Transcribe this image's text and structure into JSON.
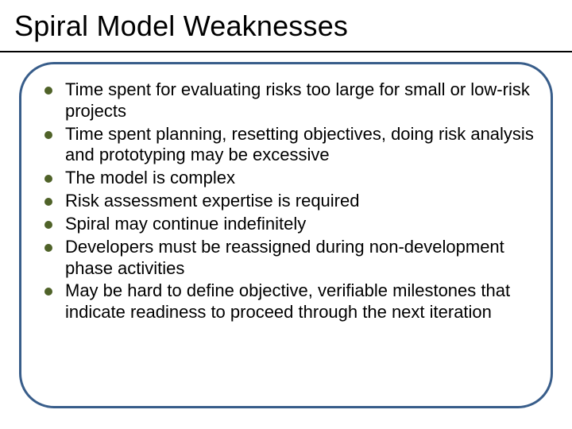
{
  "slide": {
    "title": "Spiral Model Weaknesses",
    "title_fontsize": 36,
    "title_color": "#000000",
    "underline_color": "#000000",
    "frame_border_color": "#385d8a",
    "frame_border_width": 3,
    "frame_border_radius": 44,
    "background_color": "#ffffff",
    "bullet_color": "#4f6228",
    "bullet_fontsize": 22,
    "bullet_text_color": "#000000",
    "bullets": [
      "Time spent for evaluating risks too large for small or low-risk projects",
      "Time spent planning, resetting objectives, doing risk analysis and prototyping may  be excessive",
      "The model is complex",
      "Risk assessment expertise is required",
      "Spiral may continue indefinitely",
      "Developers must be reassigned during non-development phase activities",
      "May be hard to define objective, verifiable milestones that indicate readiness to proceed through the next iteration"
    ]
  }
}
